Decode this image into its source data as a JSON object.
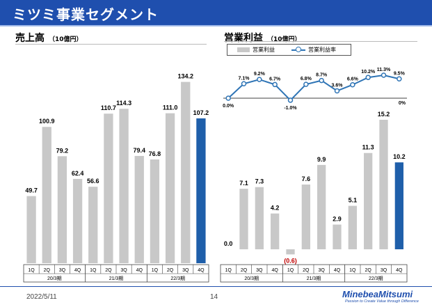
{
  "header": {
    "title": "ミツミ事業セグメント"
  },
  "sales": {
    "title": "売上高",
    "unit": "（10億円）"
  },
  "profit": {
    "title": "営業利益",
    "unit": "（10億円）",
    "legend": {
      "bar_label": "営業利益",
      "line_label": "営業利益率"
    }
  },
  "footer": {
    "date": "2022/5/11",
    "page": "14",
    "logo": "MinebeaMitsumi",
    "tagline": "Passion to Create Value through Difference"
  },
  "colors": {
    "header_blue": "#1f4fae",
    "bar_gray": "#c8c8c8",
    "bar_highlight": "#1f5faa",
    "line_blue": "#2e74b5",
    "negative_label": "#c00000"
  },
  "chart_data": [
    {
      "type": "bar",
      "title": "売上高",
      "unit": "（10億円）",
      "categories": [
        "1Q",
        "2Q",
        "3Q",
        "4Q",
        "1Q",
        "2Q",
        "3Q",
        "4Q",
        "1Q",
        "2Q",
        "3Q",
        "4Q"
      ],
      "groups": [
        {
          "label": "20/3期",
          "span": 4
        },
        {
          "label": "21/3期",
          "span": 4
        },
        {
          "label": "22/3期",
          "span": 4
        }
      ],
      "values": [
        49.7,
        100.9,
        79.2,
        62.4,
        56.6,
        110.7,
        114.3,
        79.4,
        76.8,
        111.0,
        134.2,
        107.2
      ],
      "labels": [
        "49.7",
        "100.9",
        "79.2",
        "62.4",
        "56.6",
        "110.7",
        "114.3",
        "79.4",
        "76.8",
        "111.0",
        "134.2",
        "107.2"
      ],
      "highlight_index": 11,
      "ylim": [
        0,
        140
      ],
      "grid": false
    },
    {
      "type": "bar",
      "title": "営業利益",
      "unit": "（10億円）",
      "categories": [
        "1Q",
        "2Q",
        "3Q",
        "4Q",
        "1Q",
        "2Q",
        "3Q",
        "4Q",
        "1Q",
        "2Q",
        "3Q",
        "4Q"
      ],
      "groups": [
        {
          "label": "20/3期",
          "span": 4
        },
        {
          "label": "21/3期",
          "span": 4
        },
        {
          "label": "22/3期",
          "span": 4
        }
      ],
      "values": [
        0.0,
        7.1,
        7.3,
        4.2,
        -0.6,
        7.6,
        9.9,
        2.9,
        5.1,
        11.3,
        15.2,
        10.2
      ],
      "labels": [
        "0.0",
        "7.1",
        "7.3",
        "4.2",
        "(0.6)",
        "7.6",
        "9.9",
        "2.9",
        "5.1",
        "11.3",
        "15.2",
        "10.2"
      ],
      "highlight_index": 11,
      "ylim": [
        -1,
        16
      ],
      "grid": false
    },
    {
      "type": "line",
      "series": [
        {
          "name": "営業利益率",
          "values": [
            0.0,
            7.1,
            9.2,
            6.7,
            -1.0,
            6.8,
            8.7,
            3.6,
            6.6,
            10.2,
            11.3,
            9.5
          ],
          "labels": [
            "0.0%",
            "7.1%",
            "9.2%",
            "6.7%",
            "-1.0%",
            "6.8%",
            "8.7%",
            "3.6%",
            "6.6%",
            "10.2%",
            "11.3%",
            "9.5%"
          ]
        }
      ],
      "baseline_label": "0%",
      "ylim": [
        -2,
        12
      ],
      "grid": false
    }
  ]
}
